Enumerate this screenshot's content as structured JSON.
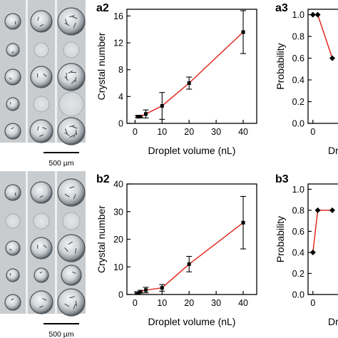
{
  "panels": {
    "a_micrograph": {
      "scale_bar": "500 µm"
    },
    "b_micrograph": {
      "scale_bar": "500 µm"
    }
  },
  "colors": {
    "line": "#e0281e",
    "marker": "#000000",
    "axis": "#000000",
    "plate_bg": "#c9ccce",
    "plate_divider": "#eef0f1",
    "droplet_edge": "#4e555a"
  },
  "chart_data": [
    {
      "panel": "a2",
      "type": "line",
      "xlabel": "Droplet volume (nL)",
      "ylabel": "Crystal number",
      "xlim": [
        -3,
        45
      ],
      "ylim": [
        0,
        17
      ],
      "xticks": [
        0,
        10,
        20,
        30,
        40
      ],
      "yticks": [
        0,
        4,
        8,
        12,
        16
      ],
      "grid": false,
      "x": [
        1,
        2,
        4,
        10,
        20,
        40
      ],
      "y": [
        1.0,
        1.0,
        1.4,
        2.6,
        6.0,
        13.6
      ],
      "err": [
        0.15,
        0.15,
        0.6,
        2.0,
        0.9,
        3.2
      ]
    },
    {
      "panel": "a3",
      "type": "line",
      "xlabel": "Dr",
      "ylabel": "Probability",
      "ylim": [
        0,
        1.05
      ],
      "xticks": [
        0
      ],
      "yticks": [
        0.0,
        0.2,
        0.4,
        0.6,
        0.8,
        1.0
      ],
      "grid": false,
      "x": [
        0,
        1,
        4
      ],
      "y": [
        1.0,
        1.0,
        0.6
      ],
      "partial": "cropped at right edge"
    },
    {
      "panel": "b2",
      "type": "line",
      "xlabel": "Droplet volume (nL)",
      "ylabel": "Crystal number",
      "xlim": [
        -3,
        45
      ],
      "ylim": [
        0,
        40
      ],
      "xticks": [
        0,
        10,
        20,
        30,
        40
      ],
      "yticks": [
        0,
        10,
        20,
        30,
        40
      ],
      "grid": false,
      "x": [
        1,
        2,
        4,
        10,
        20,
        40
      ],
      "y": [
        0.5,
        1.0,
        1.6,
        2.4,
        11.0,
        26.0
      ],
      "err": [
        0.3,
        0.5,
        1.0,
        1.2,
        2.8,
        9.5
      ]
    },
    {
      "panel": "b3",
      "type": "line",
      "xlabel": "Dr",
      "ylabel": "Probability",
      "ylim": [
        0,
        1.05
      ],
      "xticks": [
        0
      ],
      "yticks": [
        0.0,
        0.2,
        0.4,
        0.6,
        0.8,
        1.0
      ],
      "grid": false,
      "x": [
        0,
        1,
        4
      ],
      "y": [
        0.4,
        0.8,
        0.8
      ],
      "partial": "cropped at right edge"
    }
  ]
}
